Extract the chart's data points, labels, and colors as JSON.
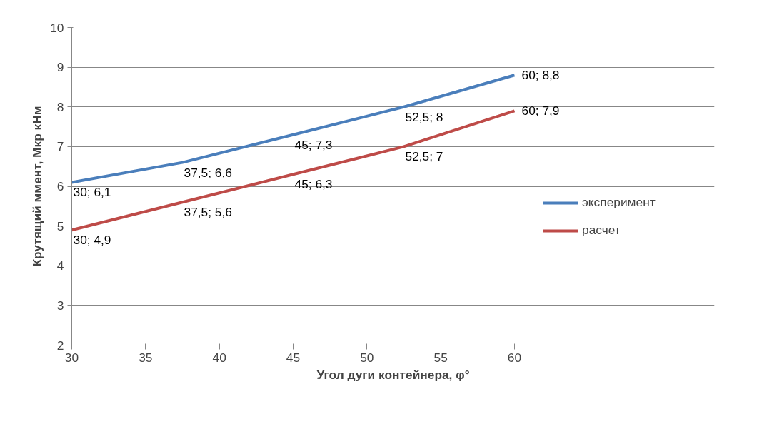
{
  "chart_data": {
    "type": "line",
    "xlabel": "Угол дуги контейнера, φ°",
    "ylabel": "Крутящий ммент, Мкр кНм",
    "x": [
      30,
      37.5,
      45,
      52.5,
      60
    ],
    "series": [
      {
        "name": "эксперимент",
        "color": "#4a7ebb",
        "values": [
          6.1,
          6.6,
          7.3,
          8,
          8.8
        ],
        "value_labels": [
          "30; 6,1",
          "37,5; 6,6",
          "45; 7,3",
          "52,5; 8",
          "60; 8,8"
        ]
      },
      {
        "name": "расчет",
        "color": "#be4b48",
        "values": [
          4.9,
          5.6,
          6.3,
          7,
          7.9
        ],
        "value_labels": [
          "30; 4,9",
          "37,5; 5,6",
          "45; 6,3",
          "52,5; 7",
          "60; 7,9"
        ]
      }
    ],
    "xlim": [
      30,
      60
    ],
    "xticks": [
      30,
      35,
      40,
      45,
      50,
      55,
      60
    ],
    "ylim": [
      2,
      10
    ],
    "yticks": [
      2,
      3,
      4,
      5,
      6,
      7,
      8,
      9,
      10
    ],
    "grid": "y",
    "legend": "right",
    "marker": "none",
    "line_style": "solid"
  }
}
